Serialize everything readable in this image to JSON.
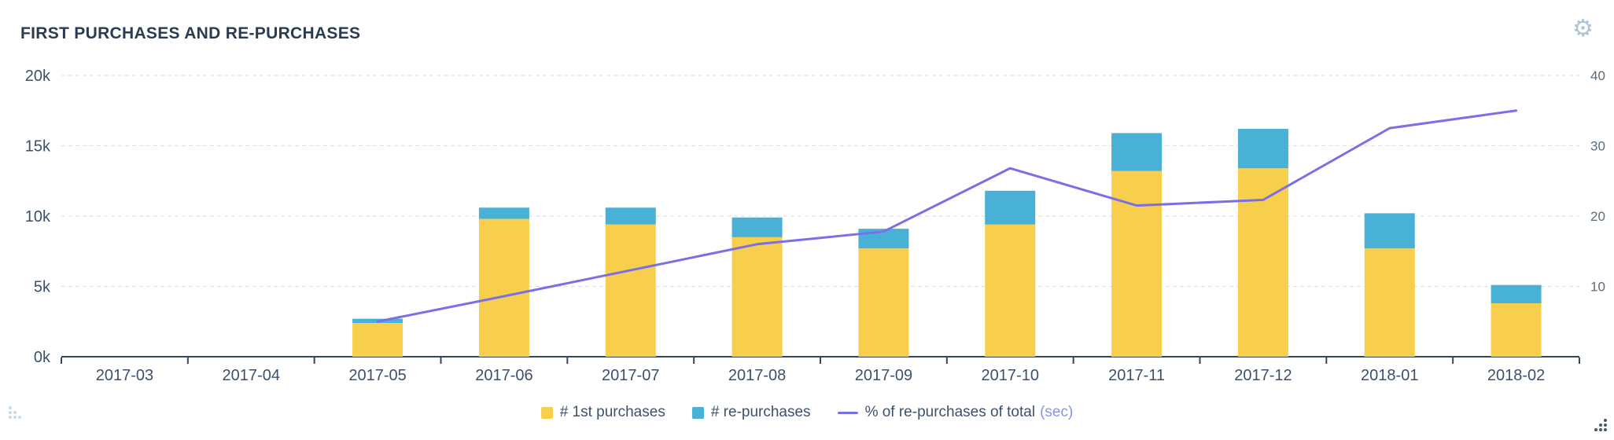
{
  "widget": {
    "title": "FIRST PURCHASES AND RE-PURCHASES",
    "gear_glyph": "⚙"
  },
  "chart_data": {
    "type": "bar",
    "subtype": "stacked-bars-with-line-overlay",
    "title": "FIRST PURCHASES AND RE-PURCHASES",
    "categories": [
      "2017-03",
      "2017-04",
      "2017-05",
      "2017-06",
      "2017-07",
      "2017-08",
      "2017-09",
      "2017-10",
      "2017-11",
      "2017-12",
      "2018-01",
      "2018-02"
    ],
    "series": [
      {
        "name": "# 1st purchases",
        "type": "bar",
        "axis": "left",
        "color": "#F8CF4C",
        "values": [
          0,
          0,
          2400,
          9800,
          9400,
          8500,
          7700,
          9400,
          13200,
          13400,
          7700,
          3800
        ]
      },
      {
        "name": "# re-purchases",
        "type": "bar",
        "axis": "left",
        "color": "#4AB1D6",
        "values": [
          0,
          0,
          300,
          800,
          1200,
          1400,
          1400,
          2400,
          2700,
          2800,
          2500,
          1300
        ]
      },
      {
        "name": "% of re-purchases of total",
        "type": "line",
        "axis": "right",
        "color": "#7A6FE6",
        "values": [
          null,
          null,
          5,
          8.6,
          12.3,
          16,
          17.8,
          26.8,
          21.5,
          22.3,
          32.5,
          35
        ]
      }
    ],
    "left_axis": {
      "min": 0,
      "max": 20000,
      "tick_labels": [
        "0k",
        "5k",
        "10k",
        "15k",
        "20k"
      ]
    },
    "right_axis": {
      "min": 0,
      "max": 40,
      "tick_labels": [
        "10",
        "20",
        "30",
        "40"
      ]
    },
    "grid": "dashed-horizontal",
    "legend_position": "bottom-center",
    "legend": [
      {
        "label": "# 1st purchases",
        "marker": "square",
        "color": "#F8CF4C"
      },
      {
        "label": "# re-purchases",
        "marker": "square",
        "color": "#4AB1D6"
      },
      {
        "label": "% of re-purchases of total",
        "suffix": "(sec)",
        "marker": "line",
        "color": "#7A6FE6"
      }
    ],
    "colors": {
      "axis_text": "#3C516B",
      "right_axis_text": "#5A6B7C",
      "gridline": "#DADDE2",
      "baseline": "#33475B"
    }
  }
}
